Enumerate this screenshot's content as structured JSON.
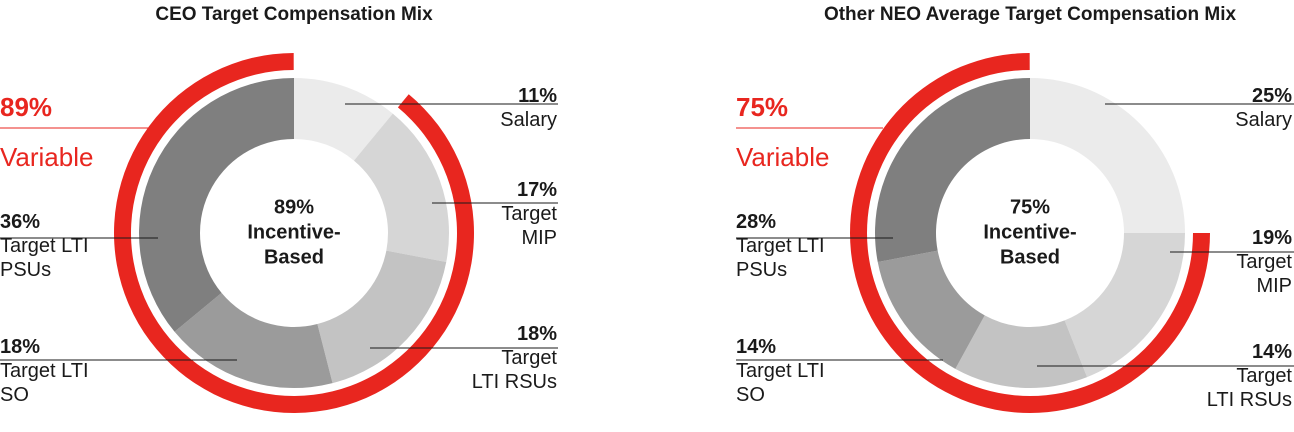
{
  "colors": {
    "accent": "#e8261f",
    "slices": [
      "#ebebeb",
      "#d6d6d6",
      "#c3c3c3",
      "#9b9b9b",
      "#7f7f7f"
    ]
  },
  "charts": [
    {
      "title": "CEO Target Compensation Mix",
      "center_text": [
        "89%",
        "Incentive-",
        "Based"
      ],
      "variable_pct": "89%",
      "variable_word": "Variable",
      "slice_labels": [
        {
          "pct": "11%",
          "lines": [
            "Salary"
          ]
        },
        {
          "pct": "17%",
          "lines": [
            "Target",
            "MIP"
          ]
        },
        {
          "pct": "18%",
          "lines": [
            "Target",
            "LTI RSUs"
          ]
        },
        {
          "pct": "18%",
          "lines": [
            "Target LTI",
            "SO"
          ]
        },
        {
          "pct": "36%",
          "lines": [
            "Target LTI",
            "PSUs"
          ]
        }
      ]
    },
    {
      "title": "Other NEO Average Target Compensation Mix",
      "center_text": [
        "75%",
        "Incentive-",
        "Based"
      ],
      "variable_pct": "75%",
      "variable_word": "Variable",
      "slice_labels": [
        {
          "pct": "25%",
          "lines": [
            "Salary"
          ]
        },
        {
          "pct": "19%",
          "lines": [
            "Target",
            "MIP"
          ]
        },
        {
          "pct": "14%",
          "lines": [
            "Target",
            "LTI RSUs"
          ]
        },
        {
          "pct": "14%",
          "lines": [
            "Target LTI",
            "SO"
          ]
        },
        {
          "pct": "28%",
          "lines": [
            "Target LTI",
            "PSUs"
          ]
        }
      ]
    }
  ],
  "chart_data": [
    {
      "type": "pie",
      "title": "CEO Target Compensation Mix",
      "categories": [
        "Salary",
        "Target MIP",
        "Target LTI RSUs",
        "Target LTI SO",
        "Target LTI PSUs"
      ],
      "values": [
        11,
        17,
        18,
        18,
        36
      ],
      "variable_total": 89
    },
    {
      "type": "pie",
      "title": "Other NEO Average Target Compensation Mix",
      "categories": [
        "Salary",
        "Target MIP",
        "Target LTI RSUs",
        "Target LTI SO",
        "Target LTI PSUs"
      ],
      "values": [
        25,
        19,
        14,
        14,
        28
      ],
      "variable_total": 75
    }
  ]
}
